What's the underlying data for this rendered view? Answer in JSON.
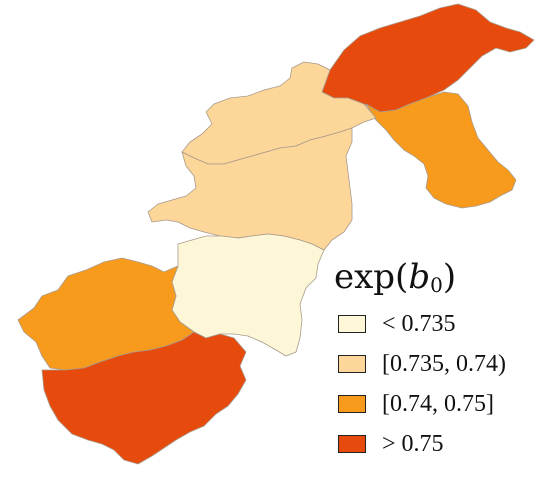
{
  "legend": {
    "title_main": "exp(",
    "title_var": "b",
    "title_sub": "0",
    "title_close": ")",
    "classes": [
      {
        "label": "< 0.735",
        "color": "#fdf7d8"
      },
      {
        "label": "[0.735, 0.74)",
        "color": "#fdd69a"
      },
      {
        "label": "[0.74, 0.75]",
        "color": "#f89b1c"
      },
      {
        "label": "> 0.75",
        "color": "#e64b0d"
      }
    ]
  },
  "colors": {
    "class_lt_0735": "#fdf7d8",
    "class_0735_074": "#fdd69a",
    "class_074_075": "#f89b1c",
    "class_gt_075": "#e64b0d",
    "border": "#a89a8a"
  }
}
